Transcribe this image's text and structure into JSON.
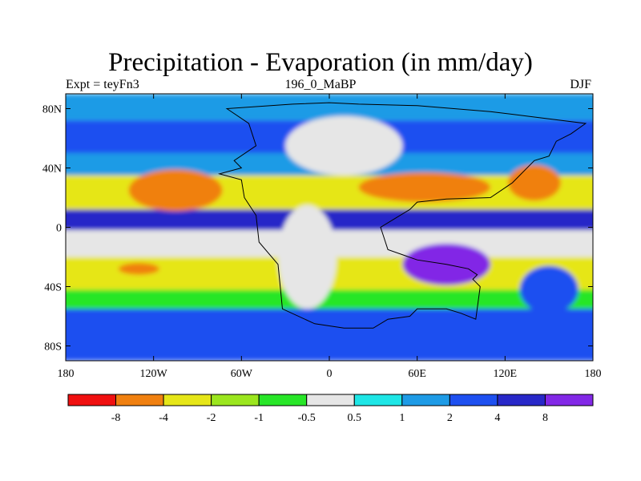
{
  "title": "Precipitation - Evaporation (in mm/day)",
  "subtitle_left": "Expt = teyFn3",
  "subtitle_center": "196_0_MaBP",
  "subtitle_right": "DJF",
  "lat_ticks": [
    "80N",
    "40N",
    "0",
    "40S",
    "80S"
  ],
  "lat_values": [
    80,
    40,
    0,
    -40,
    -80
  ],
  "lon_ticks": [
    "180",
    "120W",
    "60W",
    "0",
    "60E",
    "120E",
    "180"
  ],
  "lon_values": [
    -180,
    -120,
    -60,
    0,
    60,
    120,
    180
  ],
  "colorbar": {
    "colors": [
      "#f01010",
      "#f08010",
      "#e6e618",
      "#9be61e",
      "#28e628",
      "#e6e6e6",
      "#1ee6e6",
      "#1e9be6",
      "#1e50f0",
      "#2828c8",
      "#8228e6"
    ],
    "labels": [
      "-8",
      "-4",
      "-2",
      "-1",
      "-0.5",
      "0.5",
      "1",
      "2",
      "4",
      "8"
    ]
  },
  "chart_data": {
    "type": "heatmap",
    "title": "Precipitation - Evaporation (in mm/day)",
    "subtitle": "196_0_MaBP",
    "season": "DJF",
    "experiment": "teyFn3",
    "xlim": [
      -180,
      180
    ],
    "ylim": [
      -90,
      90
    ],
    "contour_levels": [
      -8,
      -4,
      -2,
      -1,
      -0.5,
      0.5,
      1,
      2,
      4,
      8
    ],
    "bands": [
      {
        "lat": [
          72,
          90
        ],
        "level": 7
      },
      {
        "lat": [
          50,
          72
        ],
        "level": 8
      },
      {
        "lat": [
          35,
          50
        ],
        "level": 7
      },
      {
        "lat": [
          12,
          35
        ],
        "level": 2
      },
      {
        "lat": [
          -2,
          12
        ],
        "level": 9
      },
      {
        "lat": [
          -20,
          -2
        ],
        "level": 5
      },
      {
        "lat": [
          -42,
          -20
        ],
        "level": 2
      },
      {
        "lat": [
          -55,
          -42
        ],
        "level": 4
      },
      {
        "lat": [
          -90,
          -55
        ],
        "level": 8
      }
    ],
    "features": [
      {
        "kind": "ellipse",
        "lon": -105,
        "lat": 25,
        "rlon": 32,
        "rlat": 14,
        "level": 1
      },
      {
        "kind": "ellipse",
        "lon": 65,
        "lat": 27,
        "rlon": 45,
        "rlat": 10,
        "level": 1
      },
      {
        "kind": "ellipse",
        "lon": 140,
        "lat": 30,
        "rlon": 18,
        "rlat": 12,
        "level": 1
      },
      {
        "kind": "ellipse",
        "lon": 80,
        "lat": -25,
        "rlon": 30,
        "rlat": 14,
        "level": 10
      },
      {
        "kind": "ellipse",
        "lon": -130,
        "lat": -28,
        "rlon": 14,
        "rlat": 4,
        "level": 1
      },
      {
        "kind": "ellipse",
        "lon": -15,
        "lat": -20,
        "rlon": 20,
        "rlat": 35,
        "level": 5
      },
      {
        "kind": "ellipse",
        "lon": 10,
        "lat": 55,
        "rlon": 40,
        "rlat": 20,
        "level": 5
      },
      {
        "kind": "ellipse",
        "lon": 150,
        "lat": -42,
        "rlon": 20,
        "rlat": 16,
        "level": 8
      }
    ],
    "coastline": [
      [
        -70,
        80
      ],
      [
        -55,
        70
      ],
      [
        -50,
        55
      ],
      [
        -65,
        45
      ],
      [
        -60,
        40
      ],
      [
        -75,
        36
      ],
      [
        -60,
        32
      ],
      [
        -58,
        20
      ],
      [
        -50,
        8
      ],
      [
        -48,
        -10
      ],
      [
        -35,
        -25
      ],
      [
        -32,
        -55
      ],
      [
        -10,
        -65
      ],
      [
        10,
        -68
      ],
      [
        30,
        -68
      ],
      [
        40,
        -62
      ],
      [
        55,
        -60
      ],
      [
        60,
        -55
      ],
      [
        80,
        -55
      ],
      [
        90,
        -58
      ],
      [
        100,
        -62
      ],
      [
        103,
        -40
      ],
      [
        98,
        -35
      ],
      [
        101,
        -32
      ],
      [
        95,
        -28
      ],
      [
        80,
        -25
      ],
      [
        60,
        -22
      ],
      [
        40,
        -15
      ],
      [
        35,
        0
      ],
      [
        55,
        12
      ],
      [
        60,
        17
      ],
      [
        80,
        19
      ],
      [
        110,
        20
      ],
      [
        125,
        30
      ],
      [
        140,
        45
      ],
      [
        150,
        48
      ],
      [
        155,
        58
      ],
      [
        165,
        63
      ],
      [
        175,
        70
      ],
      [
        110,
        78
      ],
      [
        60,
        82
      ],
      [
        20,
        83
      ],
      [
        0,
        84
      ],
      [
        -25,
        83
      ],
      [
        -70,
        80
      ]
    ]
  }
}
